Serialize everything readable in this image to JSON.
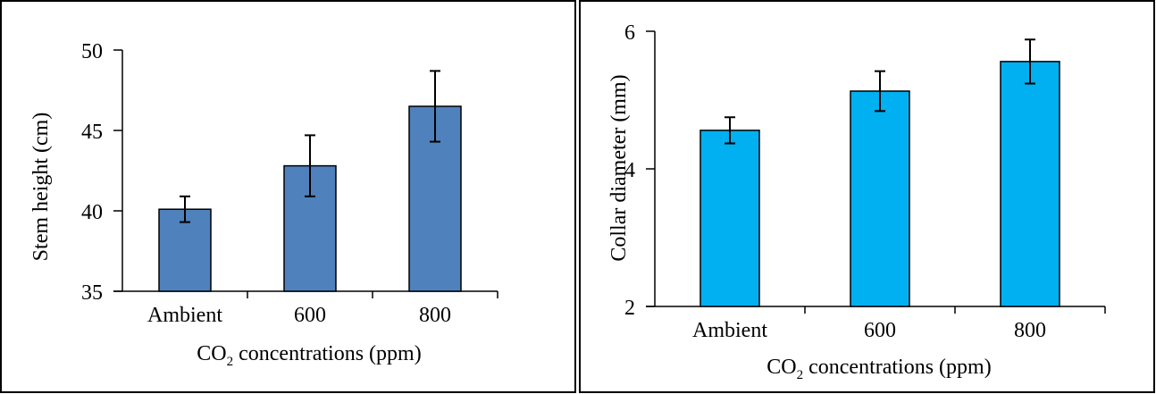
{
  "chart_data": [
    {
      "type": "bar",
      "categories": [
        "Ambient",
        "600",
        "800"
      ],
      "values": [
        40.1,
        42.8,
        46.5
      ],
      "errors": [
        0.8,
        1.9,
        2.2
      ],
      "ylabel": "Stem height (cm)",
      "xlabel_main": "CO",
      "xlabel_sub": "2",
      "xlabel_rest": " concentrations (ppm)",
      "ylim": [
        35,
        50
      ],
      "yticks": [
        35,
        40,
        45,
        50
      ],
      "bar_color": "#4f81bd",
      "grid": false
    },
    {
      "type": "bar",
      "categories": [
        "Ambient",
        "600",
        "800"
      ],
      "values": [
        4.56,
        5.13,
        5.56
      ],
      "errors": [
        0.19,
        0.29,
        0.32
      ],
      "ylabel": "Collar diameter (mm)",
      "xlabel_main": "CO",
      "xlabel_sub": "2",
      "xlabel_rest": " concentrations (ppm)",
      "ylim": [
        2,
        6
      ],
      "yticks": [
        2,
        4,
        6
      ],
      "bar_color": "#00b0f0",
      "grid": false
    }
  ]
}
